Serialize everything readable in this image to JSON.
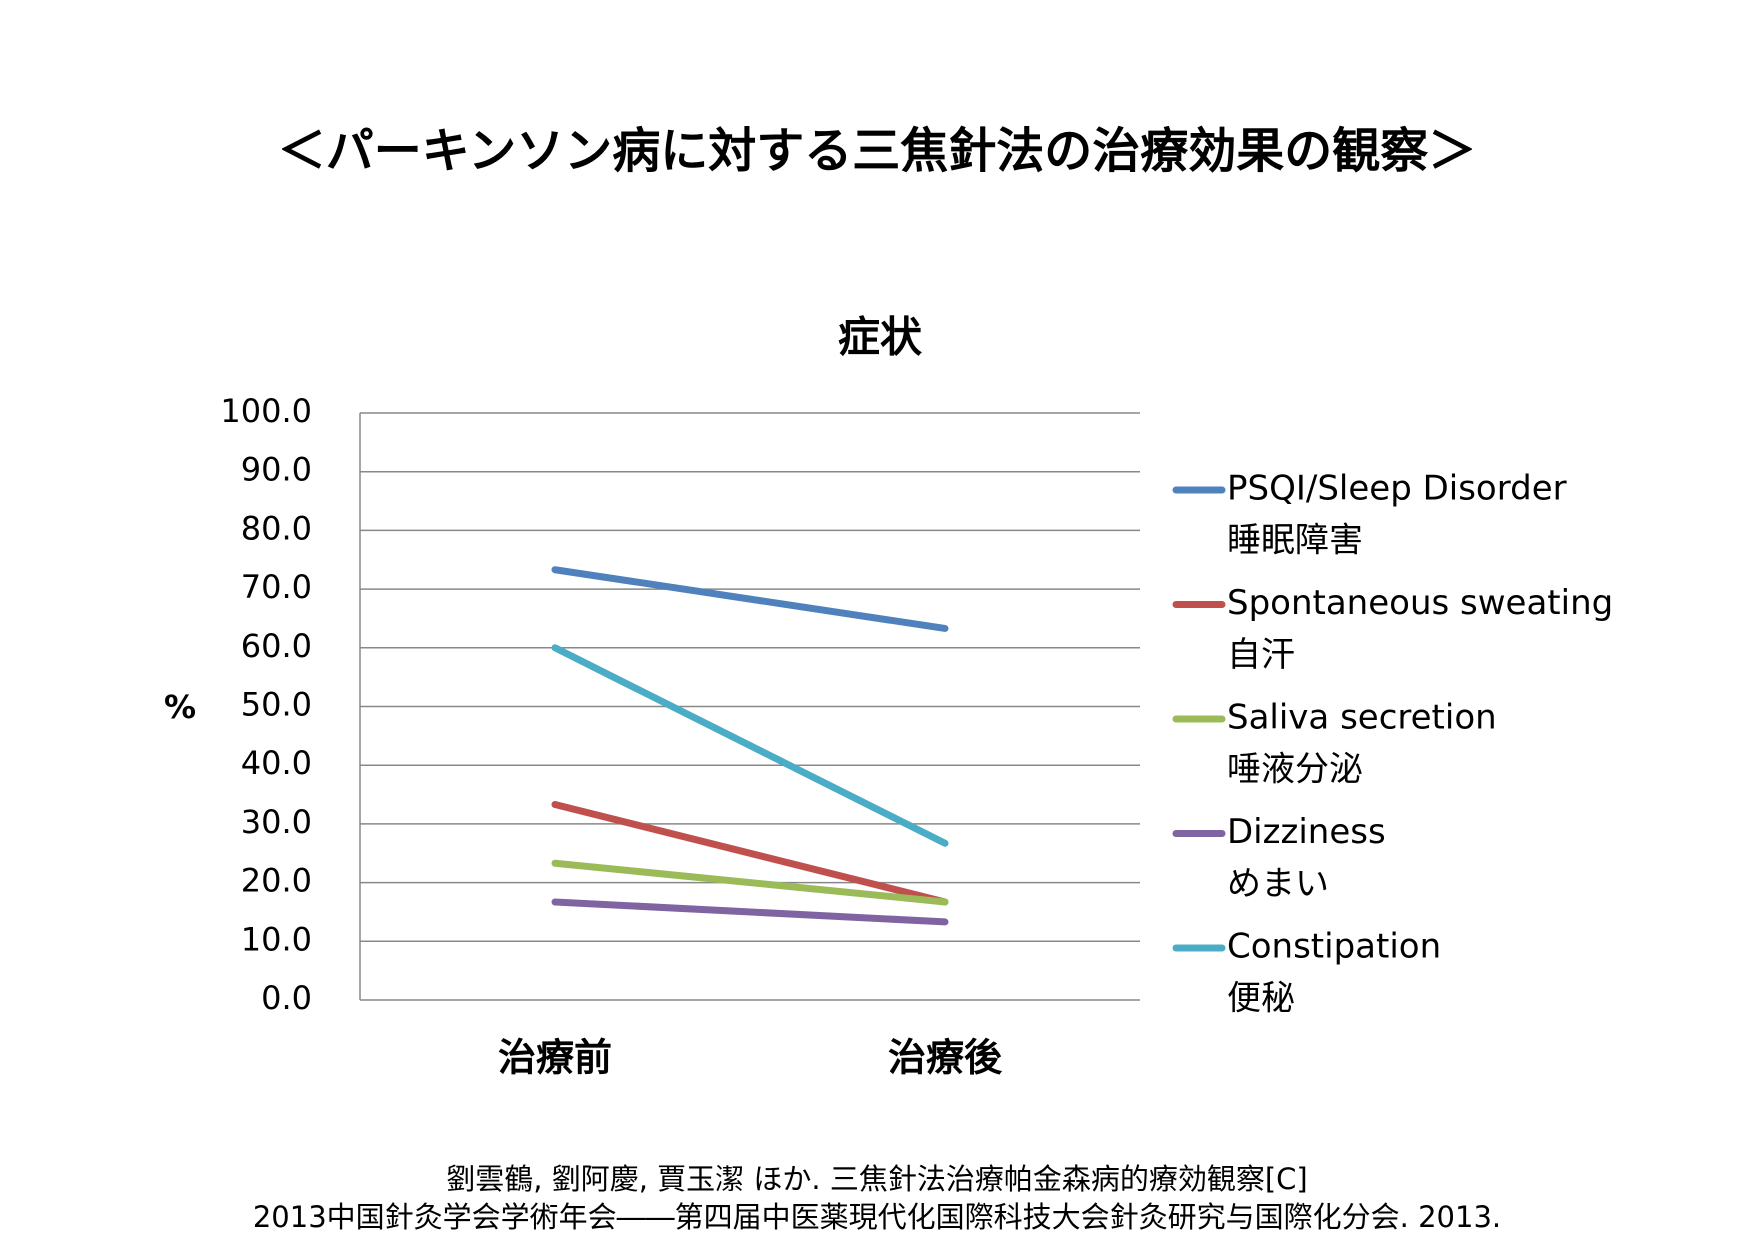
{
  "header": {
    "title": "＜パーキンソン病に対する三焦針法の治療効果の観察＞"
  },
  "chart_data": {
    "type": "line",
    "title": "症状",
    "y_label": "%",
    "categories": [
      "治療前",
      "治療後"
    ],
    "series": [
      {
        "name": "PSQI/Sleep Disorder",
        "name_ja": "睡眠障害",
        "color": "#4f81bd",
        "values": [
          73.3,
          63.3
        ]
      },
      {
        "name": "Spontaneous sweating",
        "name_ja": "自汗",
        "color": "#c0504d",
        "values": [
          33.3,
          16.7
        ]
      },
      {
        "name": "Saliva secretion",
        "name_ja": "唾液分泌",
        "color": "#9bbb59",
        "values": [
          23.3,
          16.7
        ]
      },
      {
        "name": "Dizziness",
        "name_ja": "めまい",
        "color": "#8064a2",
        "values": [
          16.7,
          13.3
        ]
      },
      {
        "name": "Constipation",
        "name_ja": "便秘",
        "color": "#4bacc6",
        "values": [
          60.0,
          26.7
        ]
      }
    ],
    "ylim": [
      0,
      100
    ],
    "yticks": [
      {
        "value": 0,
        "label": "0.0"
      },
      {
        "value": 10,
        "label": "10.0"
      },
      {
        "value": 20,
        "label": "20.0"
      },
      {
        "value": 30,
        "label": "30.0"
      },
      {
        "value": 40,
        "label": "40.0"
      },
      {
        "value": 50,
        "label": "50.0"
      },
      {
        "value": 60,
        "label": "60.0"
      },
      {
        "value": 70,
        "label": "70.0"
      },
      {
        "value": 80,
        "label": "80.0"
      },
      {
        "value": 90,
        "label": "90.0"
      },
      {
        "value": 100,
        "label": "100.0"
      }
    ],
    "grid": true,
    "legend": "right"
  },
  "citation": [
    "劉雲鶴, 劉阿慶, 賈玉潔 ほか. 三焦針法治療帕金森病的療効観察[C]",
    "2013中国針灸学会学術年会――第四届中医薬現代化国際科技大会針灸研究与国際化分会. 2013."
  ]
}
